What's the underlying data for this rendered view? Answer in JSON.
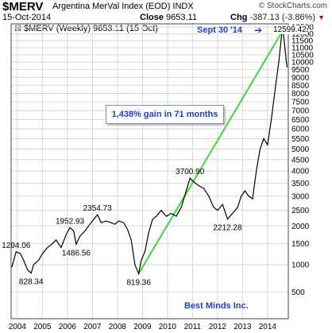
{
  "header": {
    "ticker": "$MERV",
    "fullname": "Argentina MerVal Index (EOD)",
    "exchange": "INDX",
    "brand": "© StockCharts.com",
    "date": "15-Oct-2014",
    "close_label": "Close",
    "close_value": "9653.11",
    "chg_label": "Chg",
    "chg_value": "-387.13 (-3.86%)",
    "chg_symbol": "▼"
  },
  "legend": {
    "symbol": "☒",
    "text": "$MERV (Weekly) 9653.11 (15 Oct)"
  },
  "annotations": {
    "gain_box": "1,438% gain in 71 months",
    "sept_label": "Sept 30 '14",
    "sept_arrow": "➔",
    "peak_value": "12599.42",
    "credit": "Best Minds Inc."
  },
  "colors": {
    "price": "#000000",
    "price_down": "#cc0000",
    "trendline": "#33dd33",
    "grid": "#d8d8d8",
    "annotation": "#1a3fd0"
  },
  "chart_data": {
    "type": "line",
    "title": "$MERV Argentina MerVal Index (EOD) INDX",
    "legend": "$MERV (Weekly) 9653.11 (15 Oct)",
    "grid": true,
    "x_ticks": [
      "2004",
      "2005",
      "2006",
      "2007",
      "2008",
      "2009",
      "2010",
      "2011",
      "2012",
      "2013",
      "2014"
    ],
    "x_tick_values": [
      2004,
      2005,
      2006,
      2007,
      2008,
      2009,
      2010,
      2011,
      2012,
      2013,
      2014
    ],
    "xlim": [
      2003.75,
      2014.83
    ],
    "y_ticks": [
      "500",
      "1000",
      "1500",
      "2000",
      "2500",
      "3000",
      "3500",
      "4000",
      "4500",
      "5000",
      "5500",
      "6000",
      "6500",
      "7000",
      "7500",
      "8000",
      "8500",
      "9000",
      "9500",
      "10000",
      "10500",
      "11000",
      "11500",
      "12000",
      "12500"
    ],
    "y_tick_values": [
      500,
      1000,
      1500,
      2000,
      2500,
      3000,
      3500,
      4000,
      4500,
      5000,
      5500,
      6000,
      6500,
      7000,
      7500,
      8000,
      8500,
      9000,
      9500,
      10000,
      10500,
      11000,
      11500,
      12000,
      12500
    ],
    "ylim": [
      180,
      12750
    ],
    "y_scale": "square-root",
    "series": [
      {
        "x": [
          2003.78,
          2003.95,
          2004.12,
          2004.25,
          2004.4,
          2004.55,
          2004.65,
          2004.85,
          2005.0,
          2005.2,
          2005.4,
          2005.55,
          2005.75,
          2005.95,
          2006.1,
          2006.25,
          2006.35,
          2006.5,
          2006.7,
          2006.9,
          2007.05,
          2007.2,
          2007.35,
          2007.55,
          2007.75,
          2007.9,
          2008.05,
          2008.25,
          2008.4,
          2008.55,
          2008.7,
          2008.85,
          2008.95,
          2009.1,
          2009.25,
          2009.4,
          2009.55,
          2009.75,
          2009.95,
          2010.15,
          2010.35,
          2010.55,
          2010.75,
          2010.9,
          2011.05,
          2011.25,
          2011.45,
          2011.65,
          2011.85,
          2012.0,
          2012.2,
          2012.4,
          2012.6,
          2012.8,
          2012.95,
          2013.1,
          2013.25,
          2013.4,
          2013.55,
          2013.7,
          2013.85,
          2014.0,
          2014.15,
          2014.3,
          2014.45,
          2014.6,
          2014.75,
          2014.78
        ],
        "y": [
          950,
          1294,
          1250,
          1100,
          900,
          828,
          1000,
          1100,
          1250,
          1400,
          1500,
          1600,
          1400,
          1750,
          1952,
          1850,
          1486,
          1700,
          1850,
          2050,
          2200,
          2354,
          2100,
          2150,
          2100,
          2050,
          2150,
          2100,
          1900,
          1600,
          1000,
          819,
          1100,
          1300,
          1800,
          2200,
          2300,
          2500,
          2300,
          2400,
          2300,
          2600,
          3200,
          3700,
          3550,
          3400,
          3300,
          3000,
          2600,
          2500,
          2700,
          2212,
          2400,
          2600,
          3000,
          3200,
          3000,
          2900,
          4000,
          5000,
          5500,
          5200,
          6500,
          8200,
          10000,
          12599,
          10040,
          9653
        ]
      }
    ],
    "trendline": {
      "from": [
        2008.85,
        819.36
      ],
      "to": [
        2014.72,
        12599.42
      ]
    },
    "labels": [
      {
        "text": "1294.06",
        "x": 2003.95,
        "y": 1294
      },
      {
        "text": "828.34",
        "x": 2004.55,
        "y": 828
      },
      {
        "text": "1952.93",
        "x": 2006.1,
        "y": 1952
      },
      {
        "text": "1486.56",
        "x": 2006.35,
        "y": 1486
      },
      {
        "text": "2354.73",
        "x": 2007.2,
        "y": 2354
      },
      {
        "text": "819.36",
        "x": 2008.85,
        "y": 819
      },
      {
        "text": "3700.90",
        "x": 2010.9,
        "y": 3700
      },
      {
        "text": "2212.28",
        "x": 2012.4,
        "y": 2212
      }
    ]
  }
}
